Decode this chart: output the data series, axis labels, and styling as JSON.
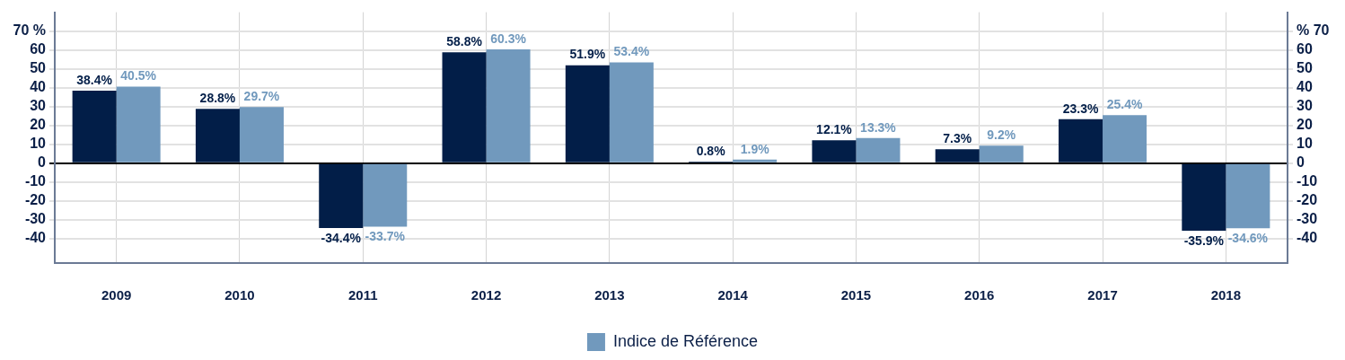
{
  "chart_data": {
    "type": "bar",
    "categories": [
      "2009",
      "2010",
      "2011",
      "2012",
      "2013",
      "2014",
      "2015",
      "2016",
      "2017",
      "2018"
    ],
    "series": [
      {
        "color": "#021e48",
        "values": [
          38.4,
          28.8,
          -34.4,
          58.8,
          51.9,
          0.8,
          12.1,
          7.3,
          23.3,
          -35.9
        ],
        "value_labels": [
          "38.4%",
          "28.8%",
          "-34.4%",
          "58.8%",
          "51.9%",
          "0.8%",
          "12.1%",
          "7.3%",
          "23.3%",
          "-35.9%"
        ]
      },
      {
        "name": "Indice de Référence",
        "color": "#7199bd",
        "values": [
          40.5,
          29.7,
          -33.7,
          60.3,
          53.4,
          1.9,
          13.3,
          9.2,
          25.4,
          -34.6
        ],
        "value_labels": [
          "40.5%",
          "29.7%",
          "-33.7%",
          "60.3%",
          "53.4%",
          "1.9%",
          "13.3%",
          "9.2%",
          "25.4%",
          "-34.6%"
        ]
      }
    ],
    "ylim": [
      -53,
      80
    ],
    "yticks": [
      -40,
      -30,
      -20,
      -10,
      0,
      10,
      20,
      30,
      40,
      50,
      60,
      {
        "value": 70,
        "label": "70 %"
      }
    ],
    "y2lim": [
      -53,
      80
    ],
    "y2ticks": [
      -40,
      -30,
      -20,
      -10,
      0,
      10,
      20,
      30,
      40,
      50,
      60,
      {
        "value": 70,
        "label": "% 70"
      }
    ],
    "grid": true,
    "legend": "bottom"
  }
}
